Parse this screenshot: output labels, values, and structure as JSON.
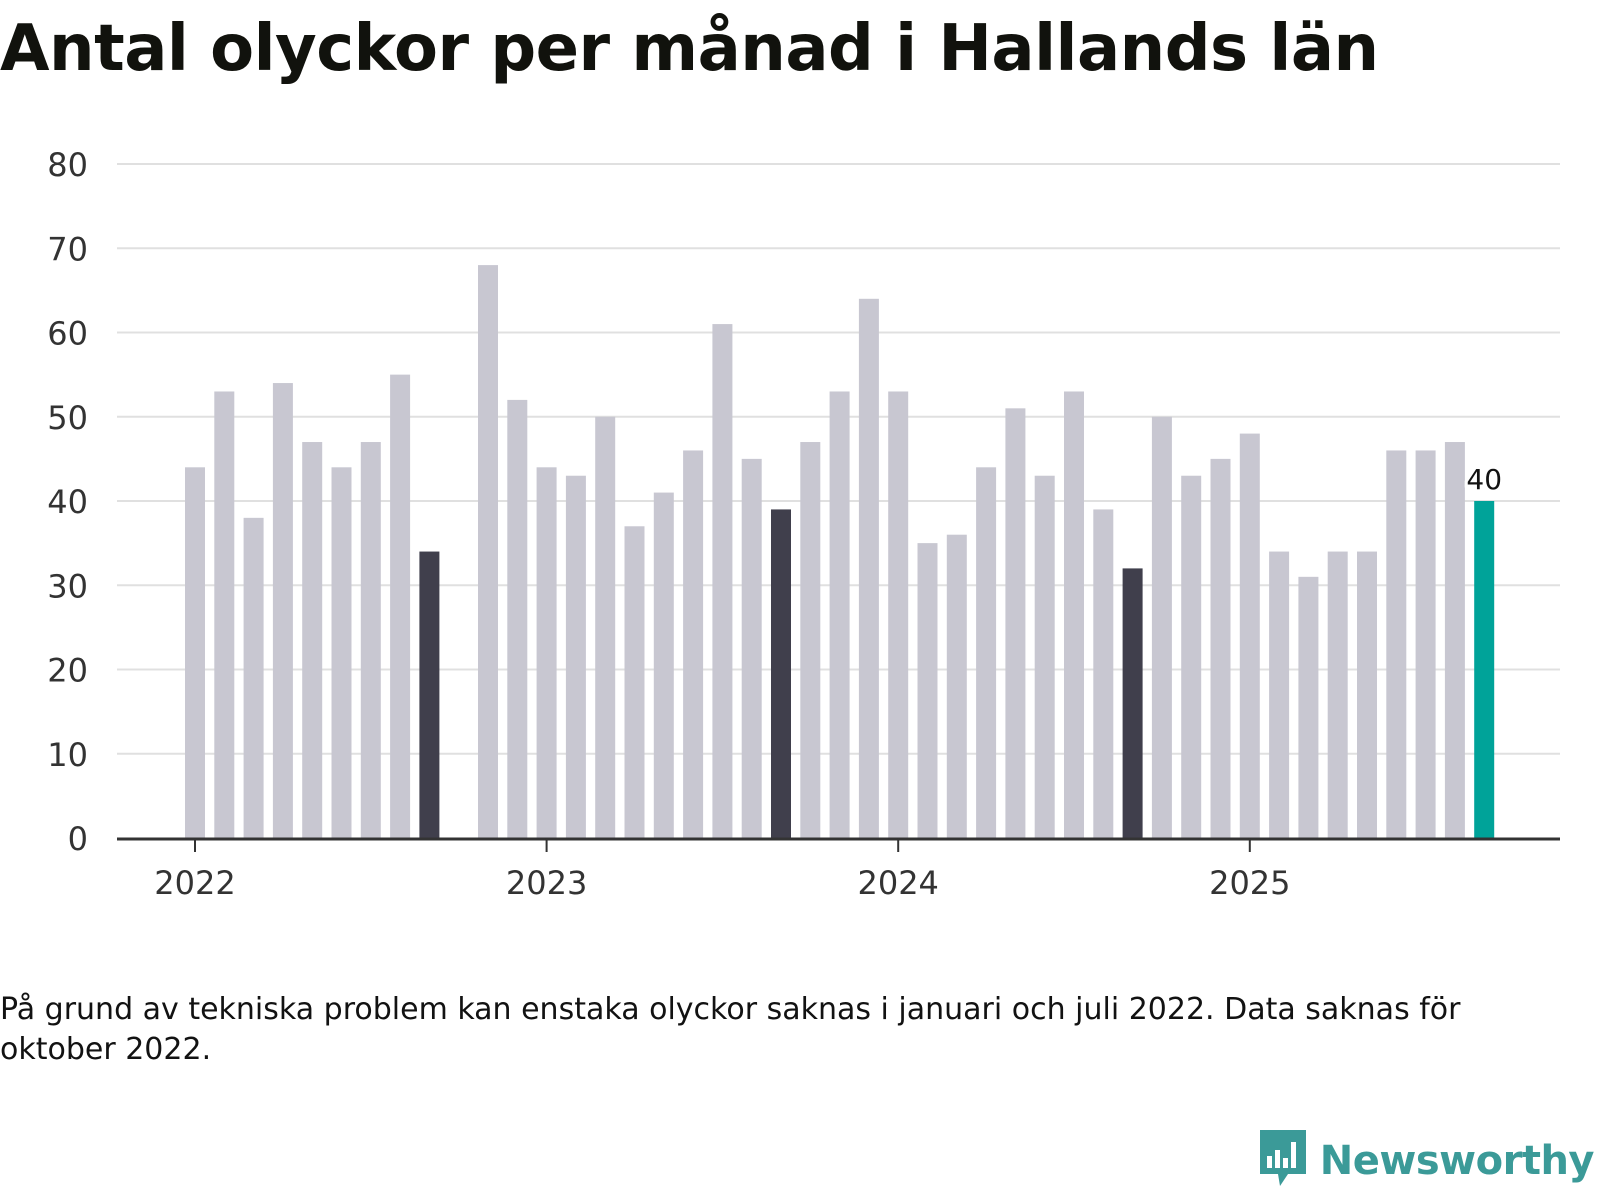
{
  "title": "Antal olyckor per månad i Hallands län",
  "note": "På grund av tekniska problem kan enstaka olyckor saknas i januari och juli 2022. Data saknas för oktober 2022.",
  "brand": {
    "name": "Newsworthy",
    "icon": "newsworthy-logo-icon",
    "color": "#3b9a98"
  },
  "colors": {
    "default_bar": "#c8c7d1",
    "highlight_bar": "#403f4c",
    "latest_bar": "#00a399",
    "grid": "#e0e0e0",
    "axis": "#333333"
  },
  "chart_data": {
    "type": "bar",
    "x_axis": "month",
    "x_tick_labels": [
      "2022",
      "2023",
      "2024",
      "2025"
    ],
    "y_tick_labels": [
      "0",
      "10",
      "20",
      "30",
      "40",
      "50",
      "60",
      "70",
      "80"
    ],
    "ylim": [
      0,
      80
    ],
    "grid": true,
    "legend": "none",
    "categories": [
      "2022-01",
      "2022-02",
      "2022-03",
      "2022-04",
      "2022-05",
      "2022-06",
      "2022-07",
      "2022-08",
      "2022-09",
      "2022-10",
      "2022-11",
      "2022-12",
      "2023-01",
      "2023-02",
      "2023-03",
      "2023-04",
      "2023-05",
      "2023-06",
      "2023-07",
      "2023-08",
      "2023-09",
      "2023-10",
      "2023-11",
      "2023-12",
      "2024-01",
      "2024-02",
      "2024-03",
      "2024-04",
      "2024-05",
      "2024-06",
      "2024-07",
      "2024-08",
      "2024-09",
      "2024-10",
      "2024-11",
      "2024-12",
      "2025-01",
      "2025-02",
      "2025-03",
      "2025-04",
      "2025-05",
      "2025-06",
      "2025-07",
      "2025-08",
      "2025-09"
    ],
    "values": [
      44,
      53,
      38,
      54,
      47,
      44,
      47,
      55,
      34,
      null,
      68,
      52,
      44,
      43,
      50,
      37,
      41,
      46,
      61,
      45,
      39,
      47,
      53,
      64,
      53,
      35,
      36,
      44,
      51,
      43,
      53,
      39,
      32,
      50,
      43,
      45,
      48,
      34,
      31,
      34,
      34,
      46,
      46,
      47,
      40
    ],
    "highlighted_categories": [
      "2022-09",
      "2023-09",
      "2024-09"
    ],
    "latest_category": "2025-09",
    "data_labels": [
      {
        "category": "2025-09",
        "text": "40"
      }
    ]
  }
}
